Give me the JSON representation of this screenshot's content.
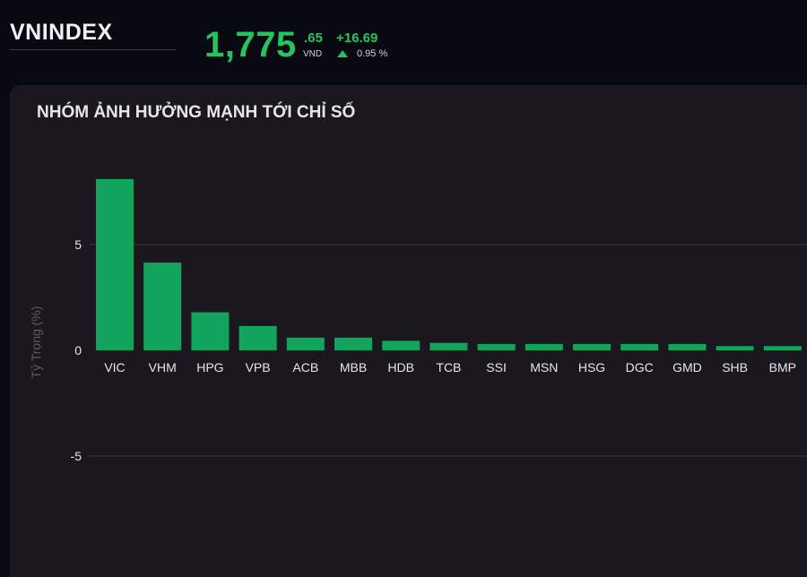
{
  "header": {
    "index_name": "VNINDEX",
    "price_integer": "1,775",
    "price_decimal": ".65",
    "currency": "VND",
    "change_abs": "+16.69",
    "change_pct": "0.95 %",
    "direction_icon": "triangle-up-icon",
    "accent_color": "#22c55e"
  },
  "panel": {
    "title": "NHÓM ẢNH HƯỞNG MẠNH TỚI CHỈ SỐ"
  },
  "chart_data": {
    "type": "bar",
    "title": "NHÓM ẢNH HƯỞNG MẠNH TỚI CHỈ SỐ",
    "xlabel": "",
    "ylabel": "Tỷ Trọng (%)",
    "categories": [
      "VIC",
      "VHM",
      "HPG",
      "VPB",
      "ACB",
      "MBB",
      "HDB",
      "TCB",
      "SSI",
      "MSN",
      "HSG",
      "DGC",
      "GMD",
      "SHB",
      "BMP"
    ],
    "values": [
      8.1,
      4.15,
      1.8,
      1.15,
      0.6,
      0.6,
      0.45,
      0.35,
      0.3,
      0.3,
      0.3,
      0.3,
      0.3,
      0.2,
      0.2
    ],
    "yticks": [
      5,
      0,
      -5
    ],
    "ylim": [
      -5.6,
      9.3
    ],
    "grid": true,
    "legend": "none",
    "bar_color": "#12a35c",
    "grid_color": "#3e3c44"
  }
}
